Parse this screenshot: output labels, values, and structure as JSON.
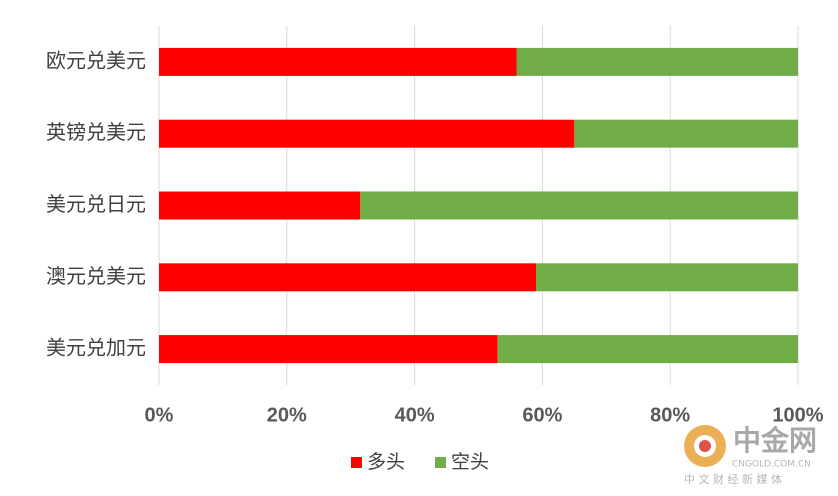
{
  "chart_data": {
    "type": "bar",
    "orientation": "horizontal",
    "stacked": true,
    "categories": [
      "欧元兑美元",
      "英镑兑美元",
      "美元兑日元",
      "澳元兑美元",
      "美元兑加元"
    ],
    "series": [
      {
        "name": "多头",
        "color": "#ff0000",
        "values": [
          56,
          65,
          31.5,
          59,
          53
        ]
      },
      {
        "name": "空头",
        "color": "#70ad47",
        "values": [
          44,
          35,
          68.5,
          41,
          47
        ]
      }
    ],
    "xlim": [
      0,
      100
    ],
    "xticks": [
      {
        "value": 0,
        "label": "0%"
      },
      {
        "value": 20,
        "label": "20%"
      },
      {
        "value": 40,
        "label": "40%"
      },
      {
        "value": 60,
        "label": "60%"
      },
      {
        "value": 80,
        "label": "80%"
      },
      {
        "value": 100,
        "label": "100%"
      }
    ],
    "grid": true,
    "legend": "bottom"
  },
  "watermark": {
    "name": "中金网",
    "site": "CNGOLD.COM.CN",
    "slogan": "中 文 财 经 新 媒 体"
  }
}
